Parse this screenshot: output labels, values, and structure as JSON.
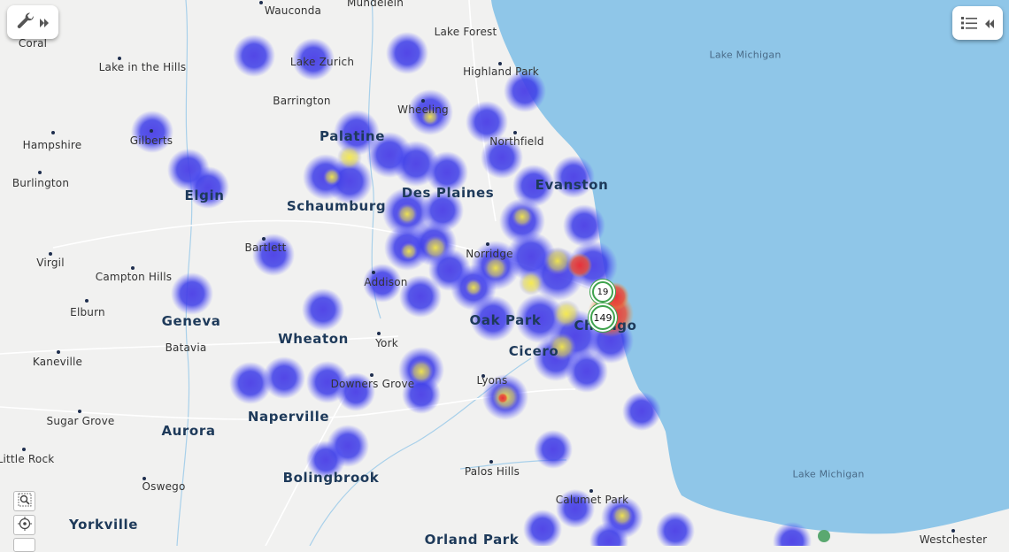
{
  "toolbar": {
    "tools_icon": "wrench-icon",
    "expand_icon": "double-chevron-right-icon",
    "legend_icon": "list-icon",
    "collapse_icon": "double-chevron-left-icon"
  },
  "colors": {
    "land": "#f1f1f0",
    "water": "#8fc6e8",
    "heat_low": "#3a3ae8",
    "heat_mid": "#f2e84a",
    "heat_high": "#e83a3a",
    "cluster_ring": "#3fa34d"
  },
  "clusters": [
    {
      "count": "19"
    },
    {
      "count": "149"
    }
  ],
  "places": [
    {
      "name": "Wauconda"
    },
    {
      "name": "Mundelein"
    },
    {
      "name": "Lake Forest"
    },
    {
      "name": "Coral"
    },
    {
      "name": "Lake in the Hills"
    },
    {
      "name": "Lake Zurich"
    },
    {
      "name": "Highland Park"
    },
    {
      "name": "Lake Michigan"
    },
    {
      "name": "Barrington"
    },
    {
      "name": "Wheeling"
    },
    {
      "name": "Palatine"
    },
    {
      "name": "Northfield"
    },
    {
      "name": "Hampshire"
    },
    {
      "name": "Gilberts"
    },
    {
      "name": "Burlington"
    },
    {
      "name": "Elgin"
    },
    {
      "name": "Schaumburg"
    },
    {
      "name": "Des Plaines"
    },
    {
      "name": "Evanston"
    },
    {
      "name": "Bartlett"
    },
    {
      "name": "Norridge"
    },
    {
      "name": "Virgil"
    },
    {
      "name": "Campton Hills"
    },
    {
      "name": "Addison"
    },
    {
      "name": "Elburn"
    },
    {
      "name": "Geneva"
    },
    {
      "name": "Oak Park"
    },
    {
      "name": "Chicago"
    },
    {
      "name": "Batavia"
    },
    {
      "name": "Wheaton"
    },
    {
      "name": "York"
    },
    {
      "name": "Cicero"
    },
    {
      "name": "Kaneville"
    },
    {
      "name": "Downers Grove"
    },
    {
      "name": "Lyons"
    },
    {
      "name": "Sugar Grove"
    },
    {
      "name": "Naperville"
    },
    {
      "name": "Aurora"
    },
    {
      "name": "Little Rock"
    },
    {
      "name": "Bolingbrook"
    },
    {
      "name": "Oswego"
    },
    {
      "name": "Palos Hills"
    },
    {
      "name": "Lake Michigan"
    },
    {
      "name": "Yorkville"
    },
    {
      "name": "Calumet Park"
    },
    {
      "name": "Orland Park"
    },
    {
      "name": "Westchester"
    }
  ],
  "zoom_controls": [
    {
      "icon": "zoom-box-icon"
    },
    {
      "icon": "locate-icon"
    },
    {
      "icon": "zoom-out-icon"
    }
  ]
}
